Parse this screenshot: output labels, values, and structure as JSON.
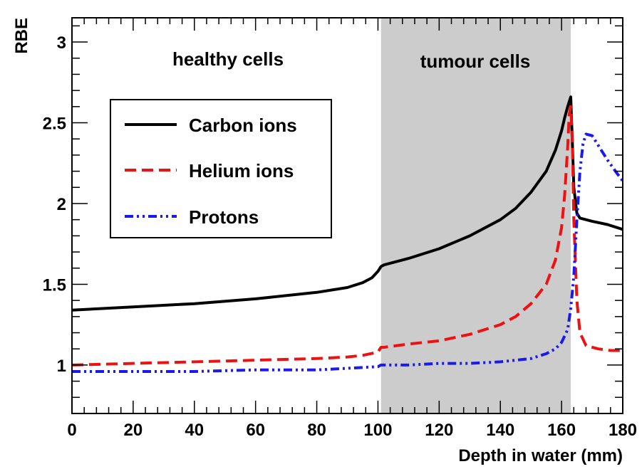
{
  "chart_data": {
    "type": "line",
    "xlabel": "Depth in water (mm)",
    "ylabel": "RBE",
    "xlim": [
      0,
      180
    ],
    "ylim": [
      0.7,
      3.15
    ],
    "x_ticks": [
      0,
      20,
      40,
      60,
      80,
      100,
      120,
      140,
      160,
      180
    ],
    "y_ticks": [
      1,
      1.5,
      2,
      2.5,
      3
    ],
    "grid": false,
    "legend_position": "top-left",
    "regions": [
      {
        "label": "healthy cells",
        "x_range": [
          0,
          101
        ]
      },
      {
        "label": "tumour cells",
        "x_range": [
          101,
          163
        ],
        "color": "#cccccc"
      }
    ],
    "series": [
      {
        "name": "Carbon ions",
        "color": "#000000",
        "dash": "solid",
        "x": [
          0,
          20,
          40,
          60,
          80,
          90,
          95,
          98,
          100,
          101,
          102,
          110,
          120,
          130,
          140,
          145,
          150,
          155,
          158,
          160,
          161,
          162,
          163,
          163.5,
          164,
          165,
          166,
          170,
          175,
          180
        ],
        "y": [
          1.34,
          1.36,
          1.38,
          1.41,
          1.45,
          1.48,
          1.51,
          1.54,
          1.58,
          1.61,
          1.62,
          1.66,
          1.72,
          1.8,
          1.9,
          1.97,
          2.07,
          2.2,
          2.33,
          2.45,
          2.53,
          2.6,
          2.66,
          2.4,
          2.1,
          1.94,
          1.91,
          1.89,
          1.87,
          1.84
        ]
      },
      {
        "name": "Helium ions",
        "color": "#ee1111",
        "dash": "dashed",
        "x": [
          0,
          20,
          40,
          60,
          80,
          90,
          95,
          100,
          101,
          102,
          110,
          120,
          130,
          140,
          145,
          150,
          155,
          158,
          160,
          161,
          162,
          162.5,
          163,
          163.5,
          164,
          165,
          166,
          168,
          172,
          176,
          180
        ],
        "y": [
          1.0,
          1.01,
          1.02,
          1.03,
          1.04,
          1.05,
          1.06,
          1.08,
          1.11,
          1.11,
          1.13,
          1.15,
          1.19,
          1.25,
          1.3,
          1.38,
          1.5,
          1.65,
          1.85,
          2.05,
          2.35,
          2.55,
          2.6,
          2.4,
          1.9,
          1.4,
          1.2,
          1.12,
          1.1,
          1.09,
          1.09
        ]
      },
      {
        "name": "Protons",
        "color": "#1a1aee",
        "dash": "dash-dot-dot",
        "x": [
          0,
          20,
          40,
          60,
          80,
          90,
          100,
          101,
          102,
          110,
          120,
          130,
          140,
          150,
          155,
          158,
          160,
          162,
          163,
          164,
          165,
          166,
          167,
          168,
          170,
          172,
          175,
          178,
          180
        ],
        "y": [
          0.96,
          0.96,
          0.96,
          0.97,
          0.97,
          0.98,
          0.99,
          1.0,
          1.0,
          1.0,
          1.01,
          1.01,
          1.02,
          1.04,
          1.07,
          1.1,
          1.14,
          1.22,
          1.35,
          1.55,
          1.9,
          2.2,
          2.37,
          2.43,
          2.42,
          2.36,
          2.27,
          2.19,
          2.14
        ]
      }
    ]
  }
}
